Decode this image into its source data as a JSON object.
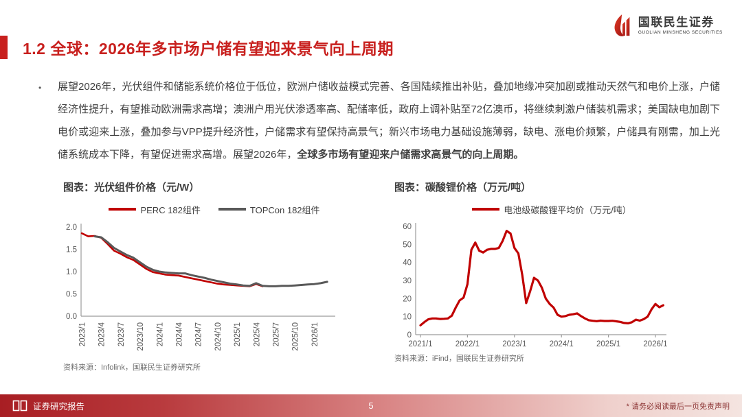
{
  "header": {
    "brand_cn": "国联民生证券",
    "brand_en": "GUOLIAN MINSHENG SECURITIES"
  },
  "slide": {
    "title": "1.2 全球：2026年多市场户储有望迎来景气向上周期"
  },
  "paragraph": {
    "bullet": "•",
    "text_main": "展望2026年，光伏组件和储能系统价格位于低位，欧洲户储收益模式完善、各国陆续推出补贴，叠加地缘冲突加剧或推动天然气和电价上涨，户储经济性提升，有望推动欧洲需求高增；澳洲户用光伏渗透率高、配储率低，政府上调补贴至72亿澳币，将继续刺激户储装机需求；美国缺电加剧下电价或迎来上涨，叠加参与VPP提升经济性，户储需求有望保持高景气；新兴市场电力基础设施薄弱，缺电、涨电价频繁，户储具有刚需，加上光储系统成本下降，有望促进需求高增。展望2026年，",
    "text_bold": "全球多市场有望迎来户储需求高景气的向上周期。"
  },
  "footer": {
    "left_label": "证券研究报告",
    "page_number": "5",
    "disclaimer": "* 请务必阅读最后一页免责声明"
  },
  "colors": {
    "accent_red": "#C8201E",
    "line_red": "#C00000",
    "line_gray": "#595959",
    "axis_gray": "#9b9b9b"
  },
  "chart_data": [
    {
      "id": "pv-module-price",
      "type": "line",
      "title": "图表：光伏组件价格（元/W）",
      "source": "资料来源：Infolink，国联民生证券研究所",
      "ylabel": "",
      "xlabel": "",
      "grid": false,
      "legend_position": "top-center",
      "ylim": [
        0,
        2.0
      ],
      "yticks": [
        {
          "value": 0.0,
          "label": "0.0"
        },
        {
          "value": 0.5,
          "label": "0.5"
        },
        {
          "value": 1.0,
          "label": "1.0"
        },
        {
          "value": 1.5,
          "label": "1.5"
        },
        {
          "value": 2.0,
          "label": "2.0"
        }
      ],
      "x_count": 39,
      "x_label_rotation": -90,
      "x_ticks": [
        {
          "index": 0,
          "label": "2023/1"
        },
        {
          "index": 3,
          "label": "2023/4"
        },
        {
          "index": 6,
          "label": "2023/7"
        },
        {
          "index": 9,
          "label": "2023/10"
        },
        {
          "index": 12,
          "label": "2024/1"
        },
        {
          "index": 15,
          "label": "2024/4"
        },
        {
          "index": 18,
          "label": "2024/7"
        },
        {
          "index": 21,
          "label": "2024/10"
        },
        {
          "index": 24,
          "label": "2025/1"
        },
        {
          "index": 27,
          "label": "2025/4"
        },
        {
          "index": 30,
          "label": "2025/7"
        },
        {
          "index": 33,
          "label": "2025/10"
        },
        {
          "index": 36,
          "label": "2026/1"
        }
      ],
      "series": [
        {
          "name": "PERC 182组件",
          "color": "#C00000",
          "values": [
            1.86,
            1.79,
            1.8,
            1.76,
            1.62,
            1.47,
            1.4,
            1.32,
            1.26,
            1.16,
            1.06,
            0.99,
            0.96,
            0.93,
            0.92,
            0.91,
            0.88,
            0.85,
            0.82,
            0.79,
            0.76,
            0.73,
            0.71,
            0.7,
            0.69,
            0.68,
            0.67,
            0.72,
            0.67,
            null,
            null,
            null,
            null,
            null,
            null,
            null,
            null,
            null,
            null
          ]
        },
        {
          "name": "TOPCon 182组件",
          "color": "#595959",
          "values": [
            null,
            null,
            1.79,
            1.77,
            1.66,
            1.53,
            1.45,
            1.37,
            1.31,
            1.21,
            1.11,
            1.04,
            1.0,
            0.98,
            0.97,
            0.96,
            0.96,
            0.92,
            0.89,
            0.86,
            0.82,
            0.79,
            0.76,
            0.73,
            0.71,
            0.69,
            0.68,
            0.74,
            0.68,
            0.67,
            0.67,
            0.68,
            0.68,
            0.69,
            0.7,
            0.71,
            0.72,
            0.74,
            0.77
          ]
        }
      ]
    },
    {
      "id": "lithium-carbonate-price",
      "type": "line",
      "title": "图表：碳酸锂价格（万元/吨）",
      "source": "资料来源：iFind，国联民生证券研究所",
      "ylabel": "",
      "xlabel": "",
      "grid": false,
      "legend_position": "top-center",
      "ylim": [
        0,
        60
      ],
      "yticks": [
        {
          "value": 0,
          "label": "0"
        },
        {
          "value": 10,
          "label": "10"
        },
        {
          "value": 20,
          "label": "20"
        },
        {
          "value": 30,
          "label": "30"
        },
        {
          "value": 40,
          "label": "40"
        },
        {
          "value": 50,
          "label": "50"
        },
        {
          "value": 60,
          "label": "60"
        }
      ],
      "x_count": 63,
      "x_label_rotation": 0,
      "x_ticks": [
        {
          "index": 0,
          "label": "2021/1"
        },
        {
          "index": 12,
          "label": "2022/1"
        },
        {
          "index": 24,
          "label": "2023/1"
        },
        {
          "index": 36,
          "label": "2024/1"
        },
        {
          "index": 48,
          "label": "2025/1"
        },
        {
          "index": 60,
          "label": "2026/1"
        }
      ],
      "series": [
        {
          "name": "电池级碳酸锂平均价（万元/吨）",
          "color": "#C00000",
          "values": [
            5.2,
            7,
            8.5,
            9,
            9,
            8.7,
            8.8,
            9,
            10.5,
            15,
            19,
            20.5,
            28,
            47,
            51,
            46.5,
            45.5,
            47,
            47.5,
            47.5,
            48,
            52,
            57.5,
            56,
            48,
            45,
            33,
            17.5,
            24,
            31.5,
            30,
            26,
            20,
            17,
            15,
            11,
            10,
            10.3,
            11,
            11.3,
            11.8,
            10.3,
            9,
            8,
            7.7,
            7.5,
            7.8,
            7.6,
            7.6,
            7.7,
            7.4,
            7.1,
            6.5,
            6.3,
            6.9,
            8.3,
            7.8,
            8.6,
            10,
            14,
            17,
            15.2,
            16.3
          ]
        }
      ]
    }
  ]
}
